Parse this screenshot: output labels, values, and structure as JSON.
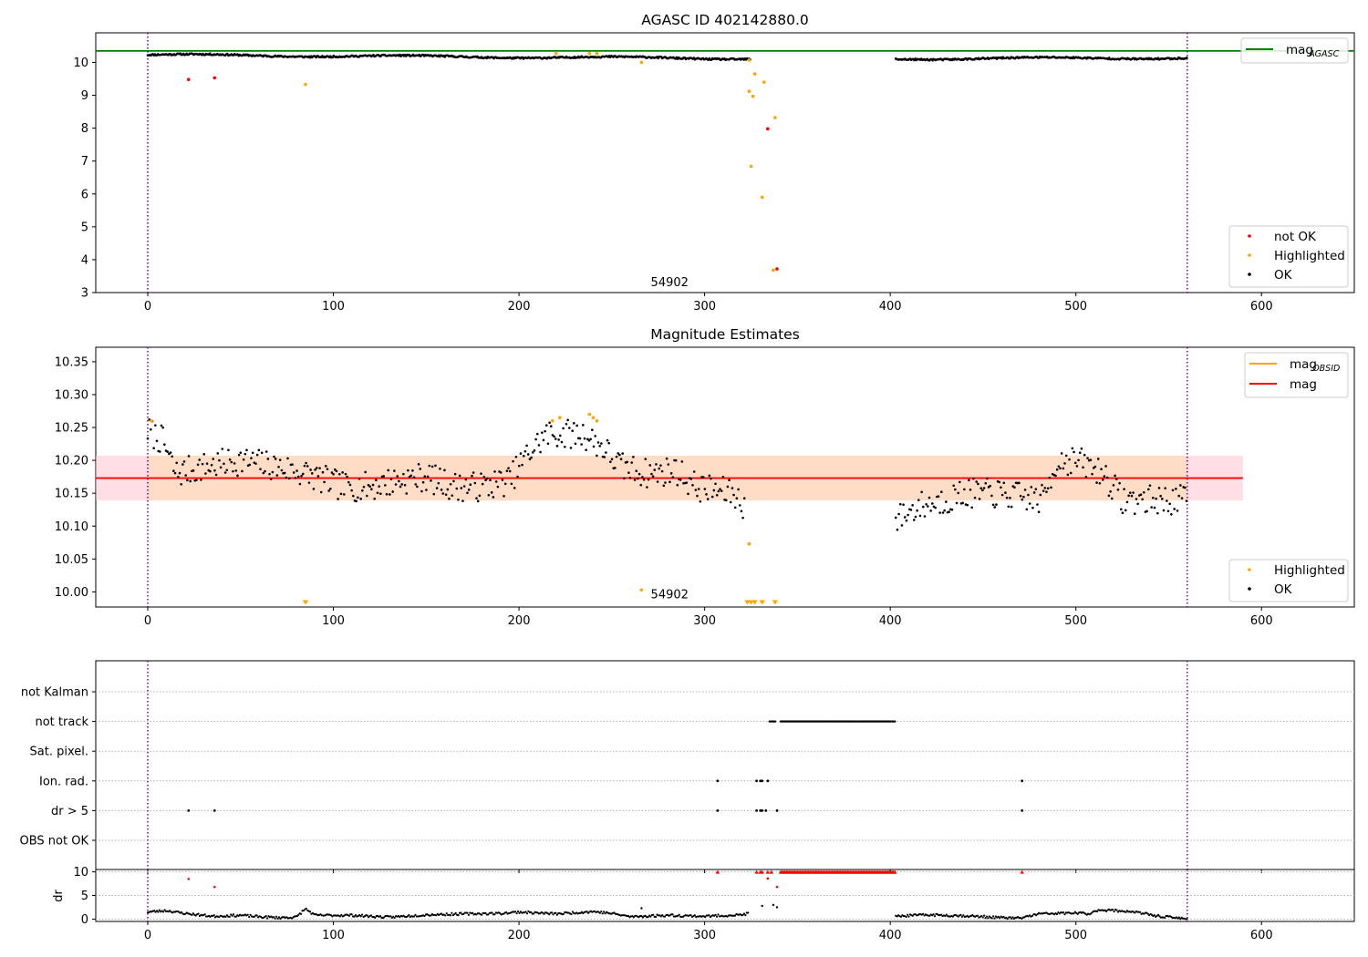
{
  "chart_data": [
    {
      "type": "scatter",
      "title": "AGASC ID 402142880.0",
      "xlim": [
        -28,
        650
      ],
      "ylim": [
        3,
        10.9
      ],
      "x_ticks": [
        0,
        100,
        200,
        300,
        400,
        500,
        600
      ],
      "y_ticks": [
        3,
        4,
        5,
        6,
        7,
        8,
        9,
        10
      ],
      "grid": false,
      "legends": [
        {
          "placement": "top-right",
          "entries": [
            {
              "label_main": "mag",
              "label_sub": "AGASC",
              "color": "#008000",
              "kind": "line"
            }
          ]
        },
        {
          "placement": "bottom-right",
          "entries": [
            {
              "label": "not OK",
              "color": "#ff0000",
              "kind": "dot"
            },
            {
              "label": "Highlighted",
              "color": "#ffa500",
              "kind": "dot"
            },
            {
              "label": "OK",
              "color": "#000000",
              "kind": "dot"
            }
          ]
        }
      ],
      "hline": {
        "y": 10.35,
        "color": "#008000",
        "name": "mag AGASC"
      },
      "vlines": [
        0,
        560
      ],
      "vline_color": "#800080",
      "annotation": {
        "text": "54902",
        "x": 270,
        "y": 3.3
      },
      "ok_segments": [
        {
          "x0": 0,
          "x1": 325,
          "y0": 10.23,
          "y1": 10.12
        },
        {
          "x0": 403,
          "x1": 560,
          "y0": 10.11,
          "y1": 10.14
        }
      ],
      "series": [
        {
          "name": "not OK",
          "color": "#ff0000",
          "points": [
            [
              22,
              9.48
            ],
            [
              36,
              9.53
            ],
            [
              334,
              7.98
            ],
            [
              339,
              3.72
            ]
          ]
        },
        {
          "name": "Highlighted",
          "color": "#ffa500",
          "points": [
            [
              85,
              9.33
            ],
            [
              220,
              10.27
            ],
            [
              238,
              10.27
            ],
            [
              242,
              10.27
            ],
            [
              266,
              10.0
            ],
            [
              324,
              10.07
            ],
            [
              324,
              9.12
            ],
            [
              326,
              8.97
            ],
            [
              327,
              9.65
            ],
            [
              325,
              6.84
            ],
            [
              331,
              5.9
            ],
            [
              332,
              9.4
            ],
            [
              338,
              8.32
            ],
            [
              337,
              3.68
            ]
          ]
        }
      ]
    },
    {
      "type": "scatter",
      "title": "Magnitude Estimates",
      "xlim": [
        -28,
        650
      ],
      "ylim": [
        9.977,
        10.372
      ],
      "x_ticks": [
        0,
        100,
        200,
        300,
        400,
        500,
        600
      ],
      "y_ticks": [
        10.0,
        10.05,
        10.1,
        10.15,
        10.2,
        10.25,
        10.3,
        10.35
      ],
      "grid": false,
      "legends": [
        {
          "placement": "top-right",
          "entries": [
            {
              "label_main": "mag",
              "label_sub": "OBSID",
              "color": "#ffa500",
              "kind": "line"
            },
            {
              "label": "mag",
              "color": "#ff0000",
              "kind": "line"
            }
          ]
        },
        {
          "placement": "bottom-right",
          "entries": [
            {
              "label": "Highlighted",
              "color": "#ffa500",
              "kind": "dot"
            },
            {
              "label": "OK",
              "color": "#000000",
              "kind": "dot"
            }
          ]
        }
      ],
      "mean_line": {
        "y": 10.173,
        "color": "#ff0000",
        "x0": -28,
        "x1": 590
      },
      "band_pink": {
        "x0": -28,
        "x1": 590,
        "y0": 10.139,
        "y1": 10.207,
        "color": "#ffc0cb"
      },
      "band_orange": {
        "x0": 0,
        "x1": 560,
        "y0": 10.139,
        "y1": 10.207,
        "color": "#ffdab9"
      },
      "vlines": [
        0,
        560
      ],
      "vline_color": "#800080",
      "annotation": {
        "text": "54902",
        "x": 270,
        "y": 9.996
      },
      "ok_profile": [
        [
          0,
          10.245
        ],
        [
          8,
          10.23
        ],
        [
          15,
          10.18
        ],
        [
          30,
          10.19
        ],
        [
          50,
          10.2
        ],
        [
          70,
          10.19
        ],
        [
          85,
          10.18
        ],
        [
          95,
          10.17
        ],
        [
          105,
          10.16
        ],
        [
          120,
          10.16
        ],
        [
          135,
          10.17
        ],
        [
          150,
          10.175
        ],
        [
          165,
          10.16
        ],
        [
          180,
          10.16
        ],
        [
          195,
          10.17
        ],
        [
          205,
          10.21
        ],
        [
          215,
          10.24
        ],
        [
          235,
          10.24
        ],
        [
          245,
          10.22
        ],
        [
          255,
          10.19
        ],
        [
          270,
          10.18
        ],
        [
          285,
          10.185
        ],
        [
          295,
          10.16
        ],
        [
          305,
          10.155
        ],
        [
          315,
          10.15
        ],
        [
          322,
          10.13
        ]
      ],
      "ok_profile2": [
        [
          403,
          10.11
        ],
        [
          415,
          10.13
        ],
        [
          430,
          10.14
        ],
        [
          440,
          10.15
        ],
        [
          455,
          10.15
        ],
        [
          470,
          10.145
        ],
        [
          482,
          10.14
        ],
        [
          490,
          10.2
        ],
        [
          500,
          10.2
        ],
        [
          508,
          10.19
        ],
        [
          515,
          10.18
        ],
        [
          525,
          10.14
        ],
        [
          540,
          10.14
        ],
        [
          560,
          10.14
        ]
      ],
      "highlighted": [
        [
          2,
          10.26
        ],
        [
          218,
          10.26
        ],
        [
          222,
          10.265
        ],
        [
          238,
          10.27
        ],
        [
          240,
          10.265
        ],
        [
          242,
          10.26
        ],
        [
          266,
          10.003
        ],
        [
          324,
          10.073
        ]
      ],
      "below_markers": [
        85,
        323,
        325,
        327,
        331,
        338
      ],
      "below_color": "#ffa500"
    },
    {
      "type": "scatter",
      "title": "",
      "xlim": [
        -28,
        650
      ],
      "categories": [
        "not Kalman",
        "not track",
        "Sat. pixel.",
        "Ion. rad.",
        "dr > 5",
        "OBS not OK"
      ],
      "flags": {
        "not Kalman": [],
        "not track": {
          "ranges": [
            [
              335,
              338
            ],
            [
              341,
              403
            ]
          ]
        },
        "Sat. pixel.": [],
        "Ion. rad.": [
          307,
          328,
          330,
          331,
          334,
          471
        ],
        "dr > 5": [
          22,
          36,
          307,
          328,
          330,
          331,
          333,
          339,
          471
        ],
        "OBS not OK": []
      },
      "vlines": [
        0,
        560
      ],
      "vline_color": "#800080"
    },
    {
      "type": "scatter",
      "title": "",
      "ylabel": "dr",
      "xlim": [
        -28,
        650
      ],
      "ylim": [
        -0.5,
        10.5
      ],
      "x_ticks": [
        0,
        100,
        200,
        300,
        400,
        500,
        600
      ],
      "y_ticks": [
        0,
        5,
        10
      ],
      "grid": true,
      "vlines": [
        0,
        560
      ],
      "vline_color": "#800080",
      "ok_profile": [
        [
          0,
          1.5
        ],
        [
          10,
          1.8
        ],
        [
          20,
          1.2
        ],
        [
          35,
          0.6
        ],
        [
          50,
          0.8
        ],
        [
          60,
          0.5
        ],
        [
          70,
          0.3
        ],
        [
          80,
          0.4
        ],
        [
          85,
          2.2
        ],
        [
          90,
          0.8
        ],
        [
          110,
          0.8
        ],
        [
          130,
          0.4
        ],
        [
          150,
          0.9
        ],
        [
          170,
          1.1
        ],
        [
          190,
          1.2
        ],
        [
          200,
          1.5
        ],
        [
          220,
          1.1
        ],
        [
          240,
          1.6
        ],
        [
          250,
          1.2
        ],
        [
          260,
          0.5
        ],
        [
          280,
          0.8
        ],
        [
          300,
          0.6
        ],
        [
          320,
          0.9
        ],
        [
          324,
          1.2
        ]
      ],
      "ok_profile2": [
        [
          403,
          0.6
        ],
        [
          420,
          0.9
        ],
        [
          440,
          0.7
        ],
        [
          460,
          0.3
        ],
        [
          470,
          0.2
        ],
        [
          480,
          1.1
        ],
        [
          500,
          1.3
        ],
        [
          508,
          1.1
        ],
        [
          512,
          2.0
        ],
        [
          530,
          1.6
        ],
        [
          545,
          0.6
        ],
        [
          558,
          0.1
        ]
      ],
      "ok_points": [
        [
          266,
          2.3
        ],
        [
          331,
          2.8
        ],
        [
          337,
          3.0
        ],
        [
          339,
          2.5
        ]
      ],
      "not_ok_points": [
        [
          22,
          8.5
        ],
        [
          36,
          6.8
        ],
        [
          334,
          8.6
        ],
        [
          339,
          6.8
        ]
      ],
      "clipped_x": [
        307,
        328,
        330,
        331,
        334,
        336,
        471
      ],
      "clipped_range": [
        341,
        403
      ]
    }
  ]
}
